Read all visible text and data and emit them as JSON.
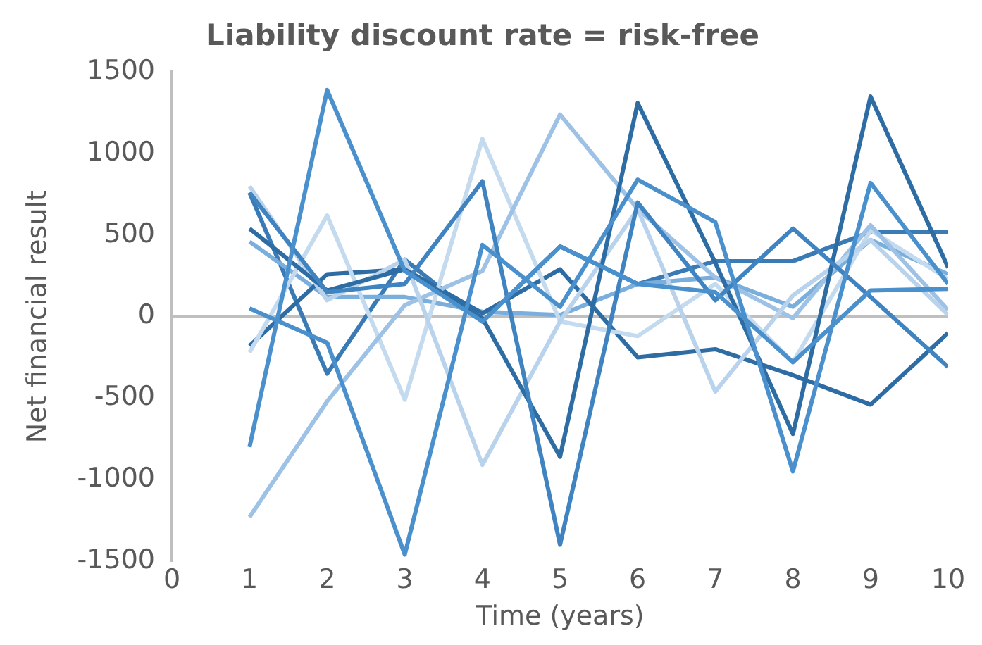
{
  "chart_data": {
    "type": "line",
    "title": "Liability discount rate = risk-free",
    "xlabel": "Time (years)",
    "ylabel": "Net financial result",
    "x": [
      1,
      2,
      3,
      4,
      5,
      6,
      7,
      8,
      9,
      10
    ],
    "series": [
      {
        "color": "#4a90cc",
        "values": [
          -800,
          1390,
          280,
          -30,
          430,
          200,
          150,
          -280,
          160,
          170
        ]
      },
      {
        "color": "#4a90cc",
        "values": [
          50,
          -160,
          -1460,
          440,
          60,
          840,
          580,
          -950,
          820,
          200
        ]
      },
      {
        "color": "#3f83c0",
        "values": [
          760,
          150,
          200,
          830,
          -1400,
          700,
          100,
          540,
          120,
          -310
        ]
      },
      {
        "color": "#2e6da4",
        "values": [
          540,
          160,
          290,
          -10,
          -860,
          1310,
          330,
          -720,
          1350,
          300
        ]
      },
      {
        "color": "#b9d3ec",
        "values": [
          800,
          100,
          350,
          -910,
          -30,
          660,
          -460,
          130,
          470,
          10
        ]
      },
      {
        "color": "#9dc2e6",
        "values": [
          -1230,
          -520,
          70,
          280,
          1240,
          660,
          240,
          -10,
          560,
          40
        ]
      },
      {
        "color": "#c4daef",
        "values": [
          -220,
          620,
          -510,
          1090,
          -30,
          -120,
          200,
          -280,
          530,
          230
        ]
      },
      {
        "color": "#2e6da4",
        "values": [
          -180,
          260,
          290,
          20,
          290,
          -250,
          -200,
          -360,
          -540,
          -100
        ]
      },
      {
        "color": "#7aaedc",
        "values": [
          460,
          120,
          120,
          30,
          10,
          200,
          240,
          60,
          470,
          260
        ]
      },
      {
        "color": "#3a7ab5",
        "values": [
          760,
          -350,
          350,
          -30,
          430,
          200,
          340,
          340,
          520,
          520
        ]
      }
    ],
    "xlim": [
      0,
      10
    ],
    "xticks": [
      0,
      1,
      2,
      3,
      4,
      5,
      6,
      7,
      8,
      9,
      10
    ],
    "ylim": [
      -1500,
      1500
    ],
    "yticks": [
      -1500,
      -1000,
      -500,
      0,
      500,
      1000,
      1500
    ],
    "ref_lines": [
      {
        "axis": "y",
        "value": 0,
        "color": "#bfbfbf"
      }
    ],
    "grid": false,
    "legend": false,
    "marker": "none",
    "line_style": "solid"
  }
}
